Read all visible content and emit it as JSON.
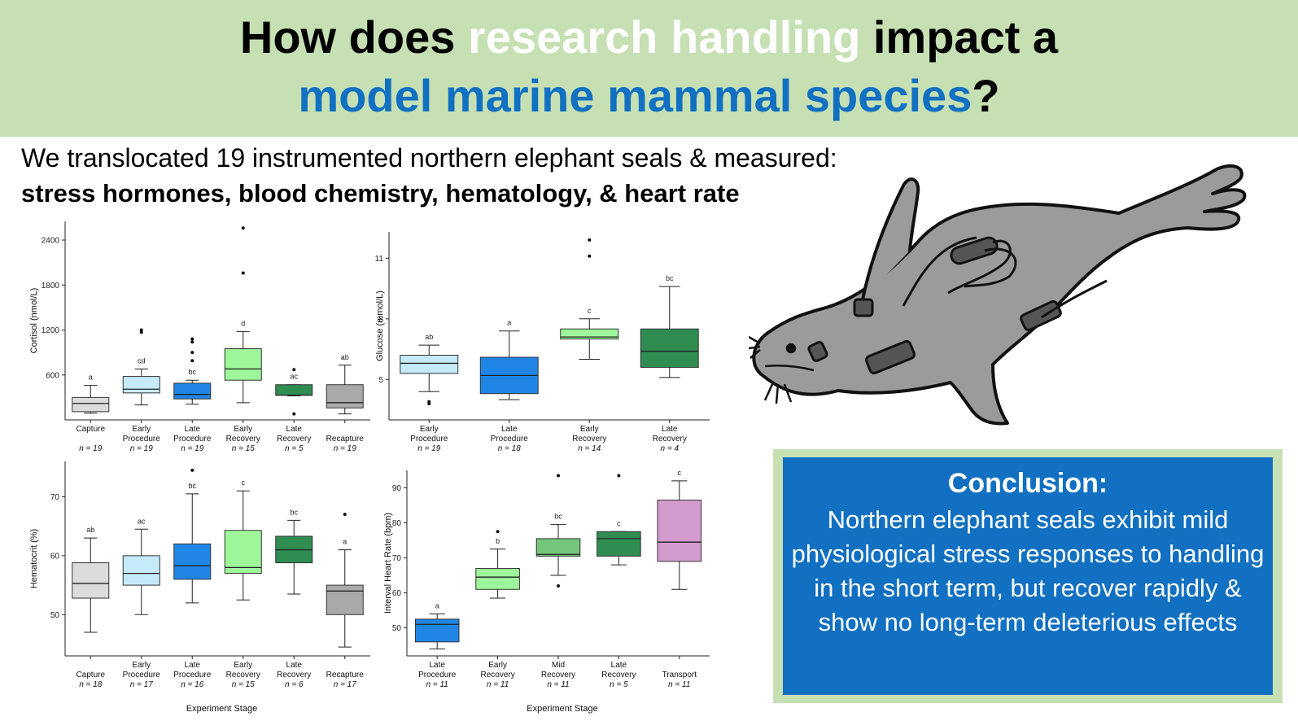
{
  "title": {
    "line1_pre": "How does ",
    "line1_highlight": "research handling",
    "line1_post": " impact a",
    "line2_highlight": "model marine mammal species",
    "line2_post": "?"
  },
  "intro": {
    "line1": "We translocated 19 instrumented northern elephant seals & measured:",
    "line2": "stress hormones, blood chemistry, hematology, & heart rate"
  },
  "conclusion": {
    "title": "Conclusion:",
    "body": "Northern elephant seals exhibit mild physiological stress responses to handling in the short term, but recover rapidly & show no long-term deleterious effects"
  },
  "colors": {
    "banner": "#c6e0b4",
    "accent_blue": "#1170c1",
    "capture_grey": "#dcdcdc",
    "early_procedure": "#c5ebf9",
    "late_procedure": "#1f86e6",
    "early_recovery": "#9ef79a",
    "late_recovery": "#2f8d52",
    "recapture_grey": "#a9a9a9",
    "mid_recovery": "#74c67a",
    "transport": "#d49bcf",
    "seal_body": "#9b9b9b"
  },
  "chart_data": [
    {
      "type": "box",
      "ylabel": "Cortisol (nmol/L)",
      "xlabel": "",
      "ylim": [
        0,
        2650
      ],
      "yticks": [
        600,
        1200,
        1800,
        2400
      ],
      "categories": [
        {
          "label1": "Capture",
          "label2": "",
          "n": "n = 19",
          "letter": "a",
          "min": 90,
          "q1": 110,
          "median": 220,
          "q3": 300,
          "max": 460,
          "outliers": [],
          "color": "#dcdcdc"
        },
        {
          "label1": "Early",
          "label2": "Procedure",
          "n": "n = 19",
          "letter": "cd",
          "min": 200,
          "q1": 360,
          "median": 410,
          "q3": 580,
          "max": 680,
          "outliers": [
            1170,
            1200
          ],
          "color": "#c5ebf9"
        },
        {
          "label1": "Late",
          "label2": "Procedure",
          "n": "n = 19",
          "letter": "bc",
          "min": 210,
          "q1": 280,
          "median": 340,
          "q3": 490,
          "max": 530,
          "outliers": [
            790,
            900,
            1040,
            1080
          ],
          "color": "#1f86e6"
        },
        {
          "label1": "Early",
          "label2": "Recovery",
          "n": "n = 15",
          "letter": "d",
          "min": 230,
          "q1": 530,
          "median": 680,
          "q3": 950,
          "max": 1180,
          "outliers": [
            1960,
            2560
          ],
          "color": "#9ef79a"
        },
        {
          "label1": "Late",
          "label2": "Recovery",
          "n": "n = 5",
          "letter": "ac",
          "min": 320,
          "q1": 330,
          "median": 330,
          "q3": 470,
          "max": 470,
          "outliers": [
            80,
            670
          ],
          "color": "#2f8d52"
        },
        {
          "label1": "",
          "label2": "Recapture",
          "n": "n = 19",
          "letter": "ab",
          "min": 80,
          "q1": 160,
          "median": 230,
          "q3": 470,
          "max": 730,
          "outliers": [],
          "color": "#a9a9a9"
        }
      ]
    },
    {
      "type": "box",
      "ylabel": "Glucose (mmol/L)",
      "xlabel": "",
      "ylim": [
        3.0,
        12.3
      ],
      "yticks": [
        5,
        8,
        11
      ],
      "categories": [
        {
          "label1": "Early",
          "label2": "Procedure",
          "n": "n = 19",
          "letter": "ab",
          "min": 4.4,
          "q1": 5.3,
          "median": 5.8,
          "q3": 6.2,
          "max": 6.7,
          "outliers": [
            3.8,
            3.9
          ],
          "color": "#c5ebf9"
        },
        {
          "label1": "Late",
          "label2": "Procedure",
          "n": "n = 18",
          "letter": "a",
          "min": 4.0,
          "q1": 4.3,
          "median": 5.2,
          "q3": 6.1,
          "max": 7.4,
          "outliers": [],
          "color": "#1f86e6"
        },
        {
          "label1": "Early",
          "label2": "Recovery",
          "n": "n = 14",
          "letter": "c",
          "min": 6.0,
          "q1": 7.0,
          "median": 7.1,
          "q3": 7.5,
          "max": 8.0,
          "outliers": [
            11.1,
            11.9
          ],
          "color": "#9ef79a"
        },
        {
          "label1": "Late",
          "label2": "Recovery",
          "n": "n = 4",
          "letter": "bc",
          "min": 5.1,
          "q1": 5.6,
          "median": 6.4,
          "q3": 7.5,
          "max": 9.6,
          "outliers": [],
          "color": "#2f8d52"
        }
      ]
    },
    {
      "type": "box",
      "ylabel": "Hematocrit (%)",
      "xlabel": "Experiment Stage",
      "ylim": [
        43,
        76
      ],
      "yticks": [
        50,
        60,
        70
      ],
      "categories": [
        {
          "label1": "",
          "label2": "Capture",
          "n": "n = 18",
          "letter": "ab",
          "min": 47,
          "q1": 52.8,
          "median": 55.3,
          "q3": 58.8,
          "max": 63,
          "outliers": [],
          "color": "#dcdcdc"
        },
        {
          "label1": "Early",
          "label2": "Procedure",
          "n": "n = 17",
          "letter": "ac",
          "min": 50,
          "q1": 55,
          "median": 57,
          "q3": 60,
          "max": 64.5,
          "outliers": [],
          "color": "#c5ebf9"
        },
        {
          "label1": "Late",
          "label2": "Procedure",
          "n": "n = 16",
          "letter": "bc",
          "min": 52,
          "q1": 56,
          "median": 58.3,
          "q3": 62,
          "max": 70.5,
          "outliers": [
            74.5
          ],
          "color": "#1f86e6"
        },
        {
          "label1": "Early",
          "label2": "Recovery",
          "n": "n = 15",
          "letter": "c",
          "min": 52.5,
          "q1": 57,
          "median": 58,
          "q3": 64.3,
          "max": 71,
          "outliers": [],
          "color": "#9ef79a"
        },
        {
          "label1": "Late",
          "label2": "Recovery",
          "n": "n = 6",
          "letter": "bc",
          "min": 53.5,
          "q1": 58.8,
          "median": 61,
          "q3": 63.3,
          "max": 66,
          "outliers": [],
          "color": "#2f8d52"
        },
        {
          "label1": "",
          "label2": "Recapture",
          "n": "n = 17",
          "letter": "a",
          "min": 44.5,
          "q1": 50,
          "median": 54,
          "q3": 55,
          "max": 61,
          "outliers": [
            67
          ],
          "color": "#a9a9a9"
        }
      ]
    },
    {
      "type": "box",
      "ylabel": "Interval Heart Rate (bpm)",
      "xlabel": "Experiment Stage",
      "ylim": [
        42,
        95
      ],
      "yticks": [
        50,
        60,
        70,
        80,
        90
      ],
      "categories": [
        {
          "label1": "Late",
          "label2": "Procedure",
          "n": "n = 11",
          "letter": "a",
          "min": 44,
          "q1": 46,
          "median": 51,
          "q3": 52.5,
          "max": 54,
          "outliers": [],
          "color": "#1f86e6"
        },
        {
          "label1": "Early",
          "label2": "Recovery",
          "n": "n = 11",
          "letter": "b",
          "min": 58.5,
          "q1": 61,
          "median": 64.5,
          "q3": 67,
          "max": 72.5,
          "outliers": [
            77.5
          ],
          "color": "#9ef79a"
        },
        {
          "label1": "Mid",
          "label2": "Recovery",
          "n": "n = 11",
          "letter": "bc",
          "min": 65,
          "q1": 70.5,
          "median": 71,
          "q3": 75.5,
          "max": 79.5,
          "outliers": [
            62,
            93.5
          ],
          "color": "#74c67a"
        },
        {
          "label1": "Late",
          "label2": "Recovery",
          "n": "n = 5",
          "letter": "c",
          "min": 68,
          "q1": 70.5,
          "median": 75.5,
          "q3": 77.5,
          "max": 77.5,
          "outliers": [
            93.5
          ],
          "color": "#2f8d52"
        },
        {
          "label1": "",
          "label2": "Transport",
          "n": "n = 11",
          "letter": "c",
          "min": 61,
          "q1": 69,
          "median": 74.5,
          "q3": 86.5,
          "max": 92,
          "outliers": [],
          "color": "#d49bcf"
        }
      ]
    }
  ]
}
